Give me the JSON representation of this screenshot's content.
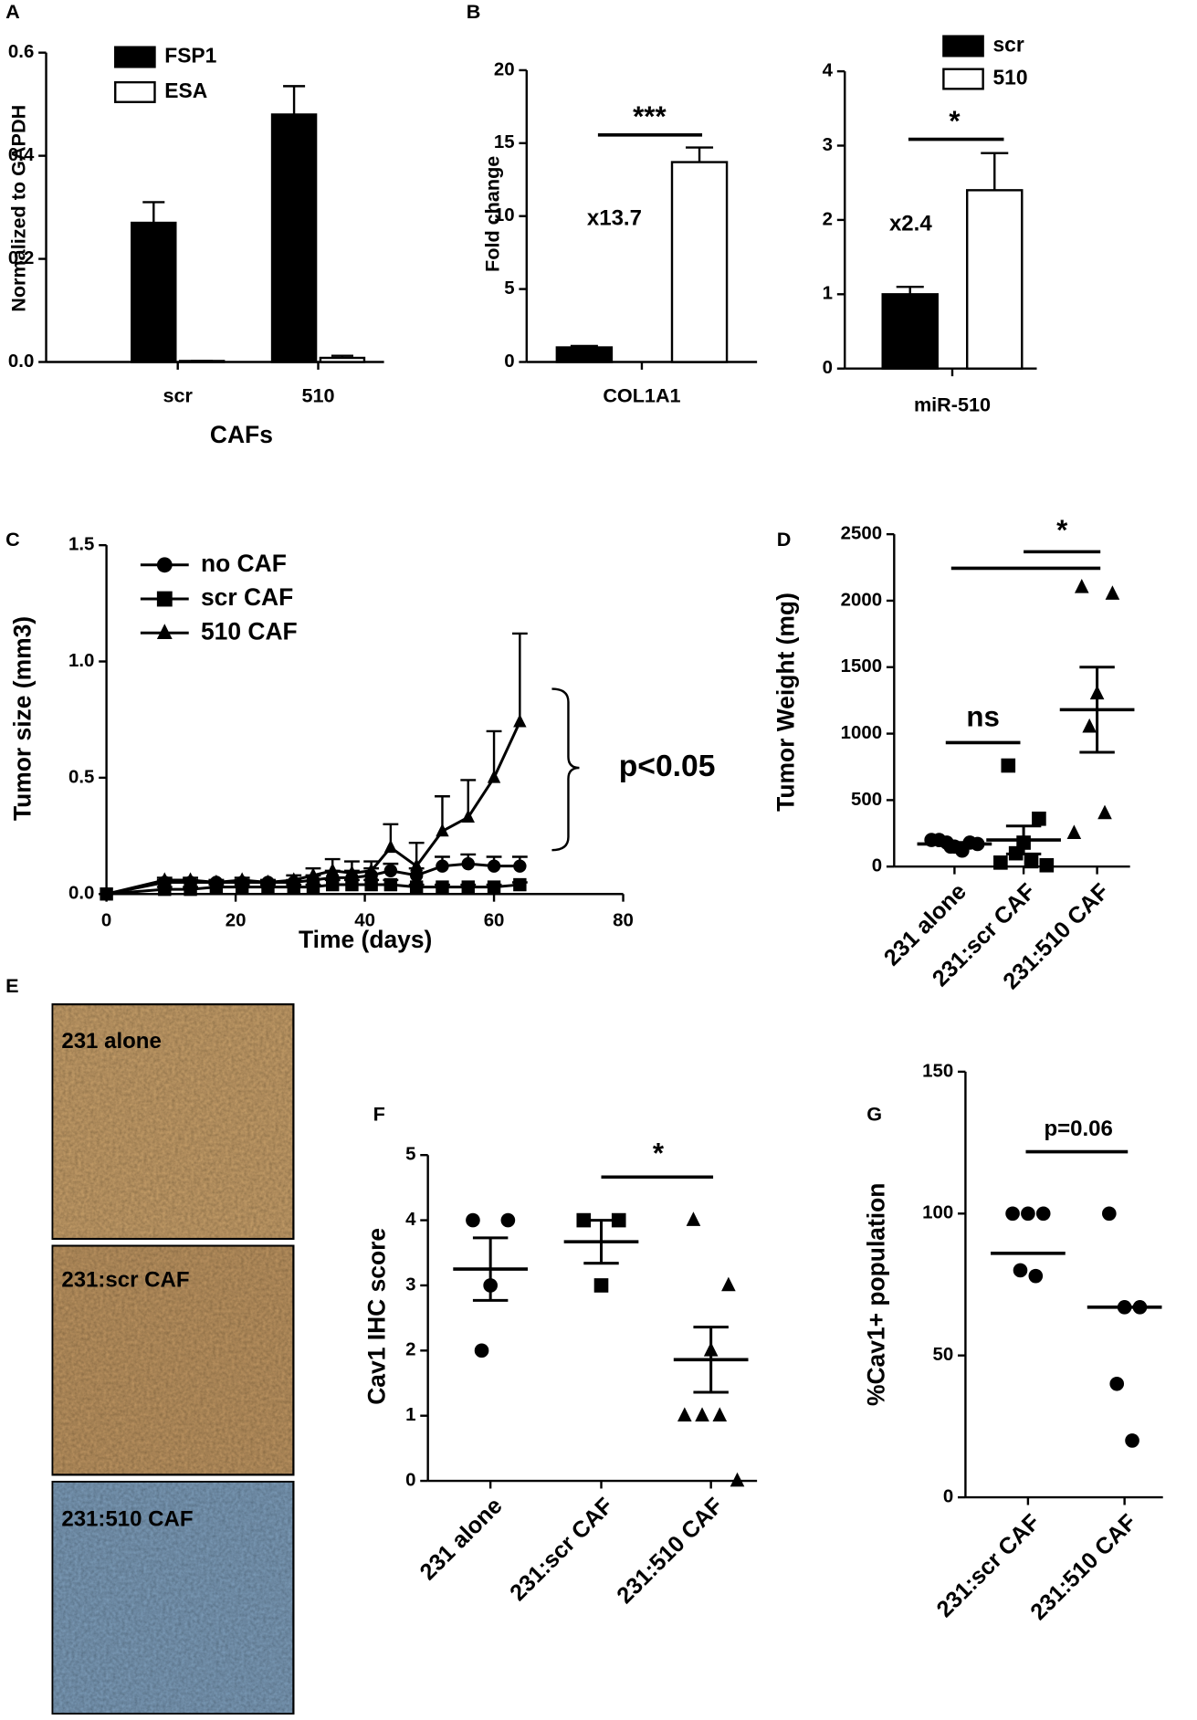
{
  "chart_data": [
    {
      "type": "bar",
      "panel": "A",
      "categories": [
        "scr",
        "510"
      ],
      "series": [
        {
          "name": "FSP1",
          "color": "#000000",
          "values": [
            0.27,
            0.48
          ],
          "errors": [
            0.04,
            0.055
          ]
        },
        {
          "name": "ESA",
          "color": "#ffffff",
          "values": [
            0.002,
            0.008
          ],
          "errors": [
            0,
            0.004
          ]
        }
      ],
      "ylim": [
        0,
        0.6
      ],
      "yticks": [
        {
          "value": 0,
          "label": "0.0"
        },
        0.2,
        0.4,
        0.6
      ],
      "xlabel": "CAFs",
      "ylabel": "Normalized to GAPDH",
      "legend": "upper left"
    },
    {
      "type": "bar",
      "panel": "B",
      "categories": [
        "COL1A1"
      ],
      "series": [
        {
          "color": "#000000",
          "values": [
            1.0
          ],
          "errors": [
            0.1
          ]
        },
        {
          "color": "#ffffff",
          "values": [
            13.7
          ],
          "errors": [
            1.0
          ]
        }
      ],
      "ylim": [
        0,
        20
      ],
      "yticks": [
        0,
        5,
        10,
        15,
        20
      ],
      "ylabel": "Fold change",
      "annotations": [
        "x13.7"
      ],
      "significance": [
        "***"
      ]
    },
    {
      "type": "bar",
      "categories": [
        "miR-510"
      ],
      "series": [
        {
          "name": "scr",
          "color": "#000000",
          "values": [
            1.0
          ],
          "errors": [
            0.1
          ]
        },
        {
          "name": "510",
          "color": "#ffffff",
          "values": [
            2.4
          ],
          "errors": [
            0.5
          ]
        }
      ],
      "ylim": [
        0,
        4
      ],
      "yticks": [
        0,
        1,
        2,
        3,
        4
      ],
      "legend": "upper right",
      "annotations": [
        "x2.4"
      ],
      "significance": [
        "*"
      ]
    },
    {
      "type": "line",
      "panel": "C",
      "x": [
        0,
        9,
        13,
        17,
        21,
        25,
        29,
        32,
        35,
        38,
        41,
        44,
        48,
        52,
        56,
        60,
        64
      ],
      "series": [
        {
          "name": "no CAF",
          "color": "#000000",
          "marker": "circle",
          "values": [
            0,
            0.05,
            0.05,
            0.05,
            0.05,
            0.05,
            0.05,
            0.06,
            0.07,
            0.07,
            0.08,
            0.1,
            0.08,
            0.12,
            0.13,
            0.12,
            0.12
          ],
          "errors": [
            0,
            0.01,
            0.01,
            0.01,
            0.01,
            0.01,
            0.01,
            0.02,
            0.03,
            0.03,
            0.03,
            0.03,
            0.03,
            0.04,
            0.04,
            0.04,
            0.04
          ]
        },
        {
          "name": "scr CAF",
          "color": "#000000",
          "marker": "square",
          "values": [
            0,
            0.02,
            0.02,
            0.03,
            0.03,
            0.03,
            0.03,
            0.03,
            0.04,
            0.04,
            0.04,
            0.04,
            0.03,
            0.03,
            0.03,
            0.03,
            0.04
          ],
          "errors": [
            0,
            0.01,
            0.01,
            0.01,
            0.01,
            0.01,
            0.01,
            0.01,
            0.02,
            0.02,
            0.02,
            0.02,
            0.01,
            0.01,
            0.01,
            0.01,
            0.01
          ]
        },
        {
          "name": "510 CAF",
          "color": "#000000",
          "marker": "triangle",
          "values": [
            0,
            0.06,
            0.06,
            0.05,
            0.06,
            0.05,
            0.06,
            0.08,
            0.1,
            0.09,
            0.1,
            0.2,
            0.12,
            0.27,
            0.33,
            0.5,
            0.74
          ],
          "errors": [
            0,
            0.01,
            0.01,
            0.01,
            0.01,
            0.01,
            0.02,
            0.03,
            0.05,
            0.05,
            0.04,
            0.1,
            0.1,
            0.15,
            0.16,
            0.2,
            0.38
          ]
        }
      ],
      "xlim": [
        0,
        80
      ],
      "xticks": [
        0,
        20,
        40,
        60,
        80
      ],
      "ylim": [
        0,
        1.5
      ],
      "yticks": [
        {
          "value": 0,
          "label": "0.0"
        },
        0.5,
        {
          "value": 1,
          "label": "1.0"
        },
        1.5
      ],
      "xlabel": "Time (days)",
      "ylabel": "Tumor size (mm3)",
      "legend": "upper left",
      "annotations": [
        "p<0.05"
      ]
    },
    {
      "type": "strip",
      "panel": "D",
      "categories": [
        "231 alone",
        "231:scr CAF",
        "231:510 CAF"
      ],
      "markers": [
        "circle",
        "square",
        "triangle"
      ],
      "points": [
        [
          200,
          180,
          150,
          180,
          120,
          200,
          170,
          150
        ],
        [
          760,
          360,
          180,
          100,
          40,
          30,
          10
        ],
        [
          2100,
          2050,
          1300,
          1050,
          400,
          250
        ]
      ],
      "means": [
        170,
        200,
        1180
      ],
      "errors": [
        12,
        105,
        320
      ],
      "ylim": [
        0,
        2500
      ],
      "yticks": [
        0,
        500,
        1000,
        1500,
        2000,
        2500
      ],
      "ylabel": "Tumor Weight (mg)",
      "significance": [
        "ns",
        "*"
      ]
    },
    {
      "type": "strip",
      "panel": "F",
      "categories": [
        "231 alone",
        "231:scr CAF",
        "231:510 CAF"
      ],
      "markers": [
        "circle",
        "square",
        "triangle"
      ],
      "points": [
        [
          4,
          4,
          3,
          2
        ],
        [
          4,
          4,
          3
        ],
        [
          4,
          3,
          2,
          1,
          1,
          1,
          0
        ]
      ],
      "means": [
        3.25,
        3.67,
        1.86
      ],
      "errors": [
        0.48,
        0.33,
        0.5
      ],
      "ylim": [
        0,
        5
      ],
      "yticks": [
        0,
        1,
        2,
        3,
        4,
        5
      ],
      "ylabel": "Cav1 IHC score",
      "significance": [
        "*"
      ]
    },
    {
      "type": "strip",
      "panel": "G",
      "categories": [
        "231:scr CAF",
        "231:510 CAF"
      ],
      "markers": [
        "circle",
        "circle"
      ],
      "points": [
        [
          100,
          100,
          100,
          80,
          78
        ],
        [
          100,
          67,
          67,
          40,
          20
        ]
      ],
      "means": [
        86,
        67
      ],
      "ylim": [
        0,
        150
      ],
      "yticks": [
        0,
        50,
        100,
        150
      ],
      "ylabel": "%Cav1+ population",
      "significance": [
        "p=0.06"
      ]
    }
  ],
  "panel_e": {
    "panel": "E",
    "labels": [
      "231 alone",
      "231:scr CAF",
      "231:510 CAF"
    ]
  }
}
